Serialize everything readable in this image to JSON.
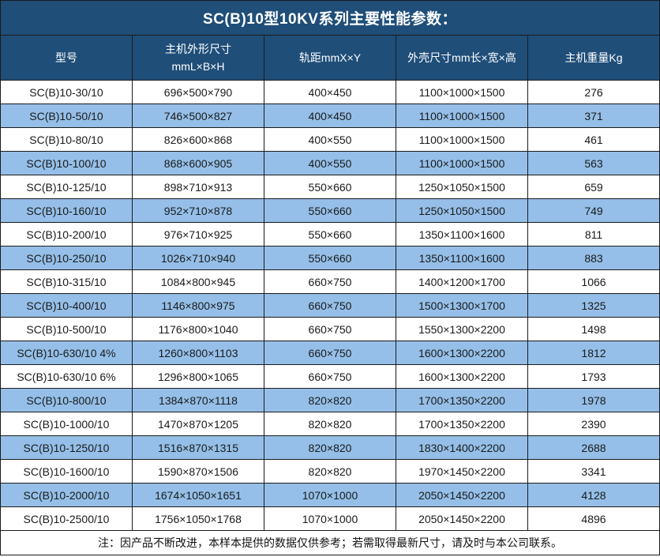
{
  "title": "SC(B)10型10KV系列主要性能参数：",
  "colors": {
    "header_bg": "#1f4e79",
    "row_alt_bg": "#95bfe8",
    "row_bg": "#ffffff",
    "grid_line": "#1b1b1b",
    "header_text": "#ffffff",
    "body_text": "#1a1a1a"
  },
  "table": {
    "header": {
      "model": "型号",
      "unit_size_line1": "主机外形尺寸",
      "unit_size_line2": "mmL×B×H",
      "track": "轨距mmX×Y",
      "shell_size": "外壳尺寸mm长×宽×高",
      "weight": "主机重量Kg"
    },
    "rows": [
      {
        "model": "SC(B)10-30/10",
        "unit_size": "696×500×790",
        "track": "400×450",
        "shell_size": "1100×1000×1500",
        "weight": "276"
      },
      {
        "model": "SC(B)10-50/10",
        "unit_size": "746×500×827",
        "track": "400×450",
        "shell_size": "1100×1000×1500",
        "weight": "371"
      },
      {
        "model": "SC(B)10-80/10",
        "unit_size": "826×600×868",
        "track": "400×550",
        "shell_size": "1100×1000×1500",
        "weight": "461"
      },
      {
        "model": "SC(B)10-100/10",
        "unit_size": "868×600×905",
        "track": "400×550",
        "shell_size": "1100×1000×1500",
        "weight": "563"
      },
      {
        "model": "SC(B)10-125/10",
        "unit_size": "898×710×913",
        "track": "550×660",
        "shell_size": "1250×1050×1500",
        "weight": "659"
      },
      {
        "model": "SC(B)10-160/10",
        "unit_size": "952×710×878",
        "track": "550×660",
        "shell_size": "1250×1050×1500",
        "weight": "749"
      },
      {
        "model": "SC(B)10-200/10",
        "unit_size": "976×710×925",
        "track": "550×660",
        "shell_size": "1350×1100×1600",
        "weight": "811"
      },
      {
        "model": "SC(B)10-250/10",
        "unit_size": "1026×710×940",
        "track": "550×660",
        "shell_size": "1350×1100×1600",
        "weight": "883"
      },
      {
        "model": "SC(B)10-315/10",
        "unit_size": "1084×800×945",
        "track": "660×750",
        "shell_size": "1400×1200×1700",
        "weight": "1066"
      },
      {
        "model": "SC(B)10-400/10",
        "unit_size": "1146×800×975",
        "track": "660×750",
        "shell_size": "1500×1300×1700",
        "weight": "1325"
      },
      {
        "model": "SC(B)10-500/10",
        "unit_size": "1176×800×1040",
        "track": "660×750",
        "shell_size": "1550×1300×2200",
        "weight": "1498"
      },
      {
        "model": "SC(B)10-630/10 4%",
        "unit_size": "1260×800×1103",
        "track": "660×750",
        "shell_size": "1600×1300×2200",
        "weight": "1812"
      },
      {
        "model": "SC(B)10-630/10 6%",
        "unit_size": "1296×800×1065",
        "track": "660×750",
        "shell_size": "1600×1300×2200",
        "weight": "1793"
      },
      {
        "model": "SC(B)10-800/10",
        "unit_size": "1384×870×1118",
        "track": "820×820",
        "shell_size": "1700×1350×2200",
        "weight": "1978"
      },
      {
        "model": "SC(B)10-1000/10",
        "unit_size": "1470×870×1205",
        "track": "820×820",
        "shell_size": "1700×1350×2200",
        "weight": "2390"
      },
      {
        "model": "SC(B)10-1250/10",
        "unit_size": "1516×870×1315",
        "track": "820×820",
        "shell_size": "1830×1400×2200",
        "weight": "2688"
      },
      {
        "model": "SC(B)10-1600/10",
        "unit_size": "1590×870×1506",
        "track": "820×820",
        "shell_size": "1970×1450×2200",
        "weight": "3341"
      },
      {
        "model": "SC(B)10-2000/10",
        "unit_size": "1674×1050×1651",
        "track": "1070×1000",
        "shell_size": "2050×1450×2200",
        "weight": "4128"
      },
      {
        "model": "SC(B)10-2500/10",
        "unit_size": "1756×1050×1768",
        "track": "1070×1000",
        "shell_size": "2050×1450×2200",
        "weight": "4896"
      }
    ],
    "footnote": "注：因产品不断改进，本样本提供的数据仅供参考；若需取得最新尺寸，请及时与本公司联系。"
  }
}
